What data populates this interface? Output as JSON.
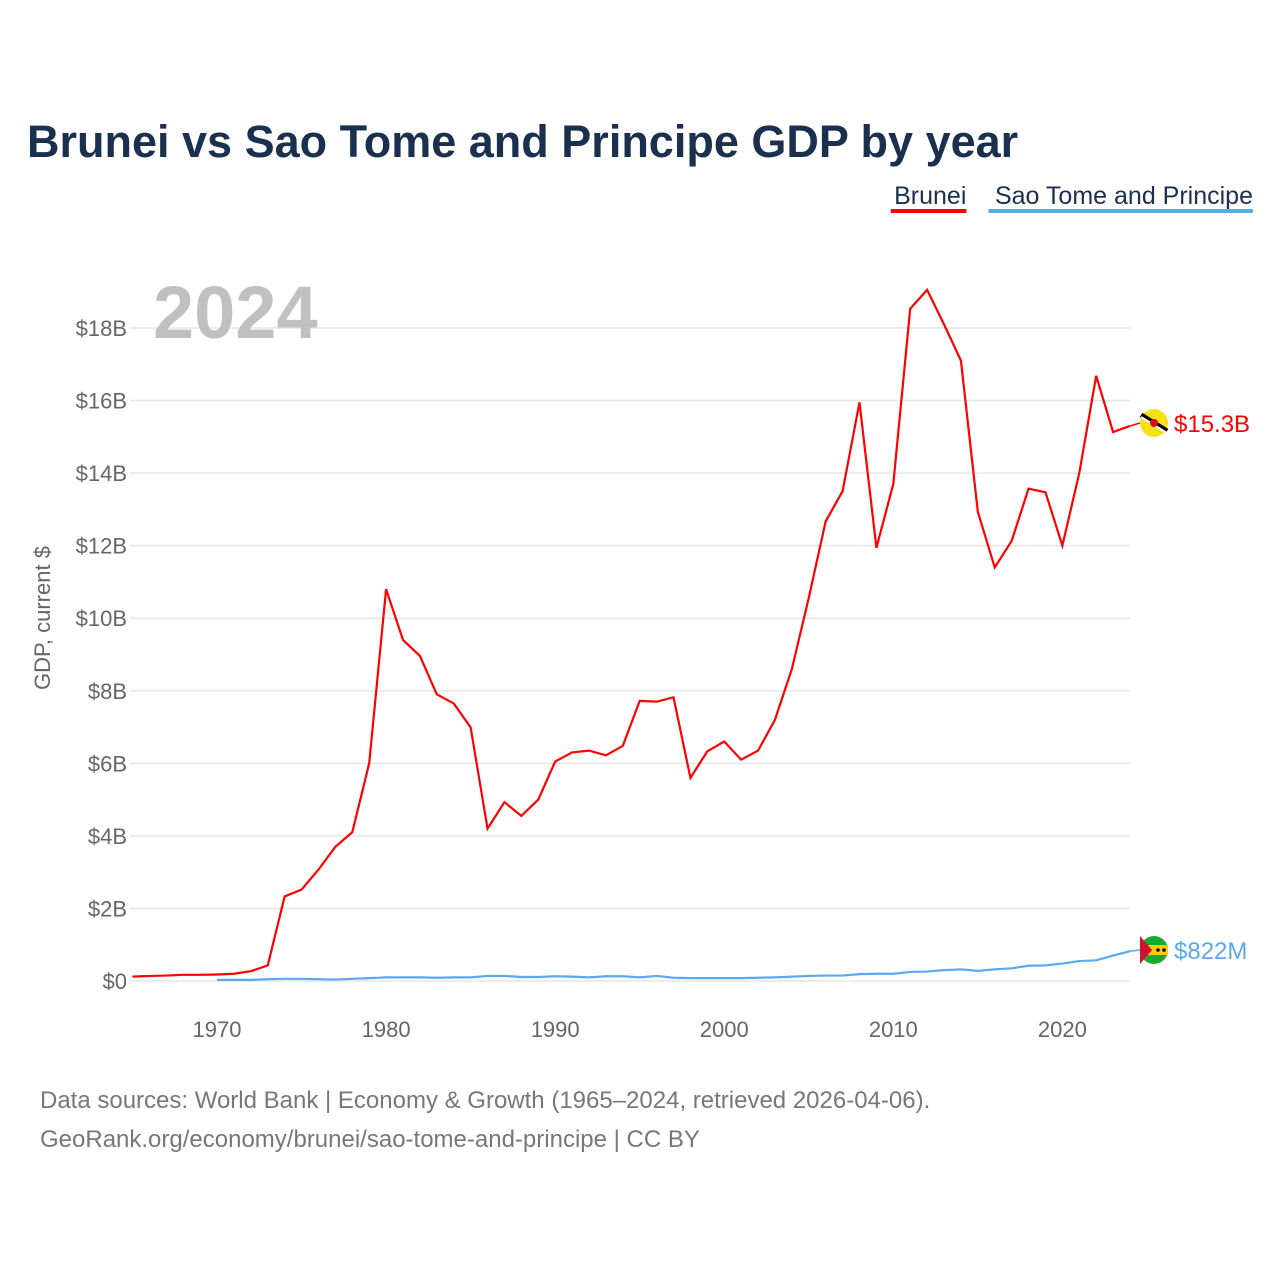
{
  "chart_data": {
    "type": "line",
    "title": "Brunei vs Sao Tome and Principe GDP by year",
    "ylabel": "GDP, current $",
    "xlabel": "",
    "year_watermark": "2024",
    "ylim": [
      0,
      19.5
    ],
    "xlim": [
      1965,
      2024
    ],
    "yticks": [
      {
        "v": 0,
        "label": "$0"
      },
      {
        "v": 2,
        "label": "$2B"
      },
      {
        "v": 4,
        "label": "$4B"
      },
      {
        "v": 6,
        "label": "$6B"
      },
      {
        "v": 8,
        "label": "$8B"
      },
      {
        "v": 10,
        "label": "$10B"
      },
      {
        "v": 12,
        "label": "$12B"
      },
      {
        "v": 14,
        "label": "$14B"
      },
      {
        "v": 16,
        "label": "$16B"
      },
      {
        "v": 18,
        "label": "$18B"
      }
    ],
    "xticks": [
      {
        "v": 1970,
        "label": "1970"
      },
      {
        "v": 1980,
        "label": "1980"
      },
      {
        "v": 1990,
        "label": "1990"
      },
      {
        "v": 2000,
        "label": "2000"
      },
      {
        "v": 2010,
        "label": "2010"
      },
      {
        "v": 2020,
        "label": "2020"
      }
    ],
    "legend_placement": "top-right",
    "series": [
      {
        "name": "Brunei",
        "color": "#ff0000",
        "end_label": "$15.3B",
        "start_year": 1965,
        "values": [
          0.12,
          0.14,
          0.15,
          0.17,
          0.17,
          0.18,
          0.2,
          0.27,
          0.43,
          2.33,
          2.52,
          3.07,
          3.7,
          4.1,
          6.0,
          10.8,
          9.4,
          8.96,
          7.9,
          7.65,
          6.99,
          4.2,
          4.93,
          4.55,
          5.0,
          6.05,
          6.3,
          6.35,
          6.22,
          6.48,
          7.72,
          7.7,
          7.82,
          5.6,
          6.33,
          6.6,
          6.1,
          6.35,
          7.2,
          8.6,
          10.56,
          12.67,
          13.5,
          15.95,
          11.94,
          13.7,
          18.53,
          19.05,
          18.1,
          17.1,
          12.93,
          11.4,
          12.13,
          13.57,
          13.47,
          12.0,
          14.0,
          16.68,
          15.13,
          15.3
        ]
      },
      {
        "name": "Sao Tome and Principe",
        "color": "#5ba8f0",
        "end_label": "$822M",
        "start_year": 1970,
        "values": [
          0.03,
          0.03,
          0.03,
          0.05,
          0.06,
          0.06,
          0.05,
          0.04,
          0.06,
          0.08,
          0.1,
          0.1,
          0.1,
          0.09,
          0.1,
          0.1,
          0.14,
          0.14,
          0.11,
          0.11,
          0.13,
          0.12,
          0.1,
          0.13,
          0.13,
          0.1,
          0.14,
          0.09,
          0.08,
          0.08,
          0.08,
          0.08,
          0.09,
          0.1,
          0.12,
          0.14,
          0.15,
          0.15,
          0.19,
          0.2,
          0.2,
          0.25,
          0.26,
          0.3,
          0.32,
          0.28,
          0.32,
          0.35,
          0.42,
          0.43,
          0.48,
          0.55,
          0.57,
          0.7,
          0.822
        ]
      }
    ]
  },
  "footer": {
    "line1": "Data sources: World Bank | Economy & Growth (1965–2024, retrieved 2026-04-06).",
    "line2": "GeoRank.org/economy/brunei/sao-tome-and-principe | CC BY"
  }
}
